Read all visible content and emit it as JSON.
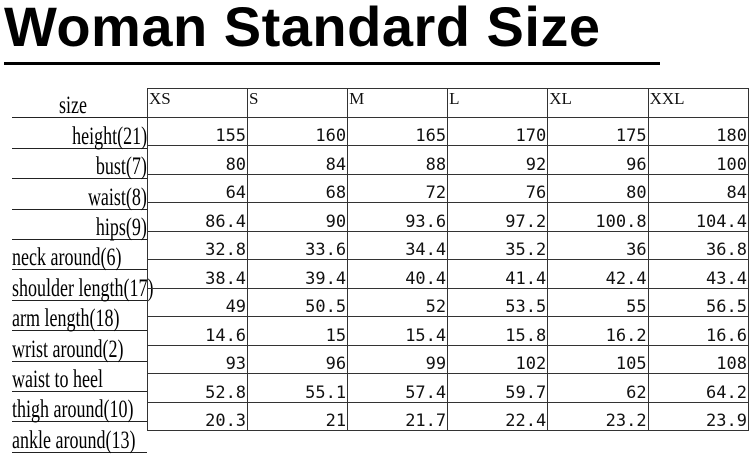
{
  "title": "Woman Standard Size",
  "table": {
    "corner_label": "size",
    "sizes": [
      "XS",
      "S",
      "M",
      "L",
      "XL",
      "XXL"
    ],
    "rows": [
      {
        "label": "height(21)",
        "values": [
          "155",
          "160",
          "165",
          "170",
          "175",
          "180"
        ]
      },
      {
        "label": "bust(7)",
        "values": [
          "80",
          "84",
          "88",
          "92",
          "96",
          "100"
        ]
      },
      {
        "label": "waist(8)",
        "values": [
          "64",
          "68",
          "72",
          "76",
          "80",
          "84"
        ]
      },
      {
        "label": "hips(9)",
        "values": [
          "86.4",
          "90",
          "93.6",
          "97.2",
          "100.8",
          "104.4"
        ]
      },
      {
        "label": "neck around(6)",
        "values": [
          "32.8",
          "33.6",
          "34.4",
          "35.2",
          "36",
          "36.8"
        ]
      },
      {
        "label": "shoulder length(17)",
        "values": [
          "38.4",
          "39.4",
          "40.4",
          "41.4",
          "42.4",
          "43.4"
        ]
      },
      {
        "label": "arm length(18)",
        "values": [
          "49",
          "50.5",
          "52",
          "53.5",
          "55",
          "56.5"
        ]
      },
      {
        "label": "wrist around(2)",
        "values": [
          "14.6",
          "15",
          "15.4",
          "15.8",
          "16.2",
          "16.6"
        ]
      },
      {
        "label": "waist to heel",
        "values": [
          "93",
          "96",
          "99",
          "102",
          "105",
          "108"
        ]
      },
      {
        "label": "thigh around(10)",
        "values": [
          "52.8",
          "55.1",
          "57.4",
          "59.7",
          "62",
          "64.2"
        ]
      },
      {
        "label": "ankle around(13)",
        "values": [
          "20.3",
          "21",
          "21.7",
          "22.4",
          "23.2",
          "23.9"
        ]
      }
    ]
  }
}
